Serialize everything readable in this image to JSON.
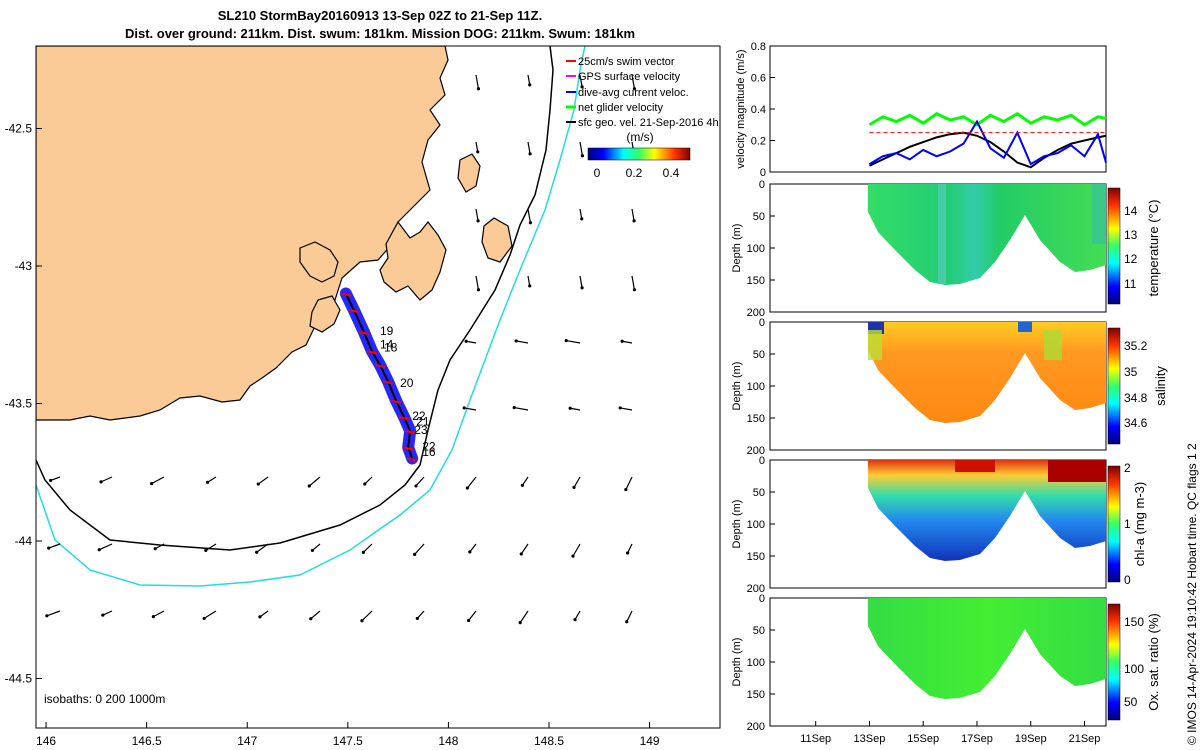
{
  "title": {
    "line1": "SL210 StormBay20160913 13-Sep 02Z to 21-Sep 11Z.",
    "line2": "Dist. over ground: 211km. Dist. swum: 181km. Mission DOG: 211km. Swum: 181km"
  },
  "colors": {
    "land": "#fbcb97",
    "isobath_200": "#000000",
    "isobath_1000": "#22dddd",
    "track": "#000000",
    "swim_vector": "#ff0000",
    "gps_velocity": "#ff00ff",
    "dive_avg_velocity": "#0000ff",
    "net_glider_velocity": "#00ff00",
    "sfc_geo_velocity": "#000000"
  },
  "credit": "© IMOS 14-Apr-2024 19:10:42 Hobart time. QC flags 1  2",
  "chart_data": [
    {
      "id": "map",
      "type": "scatter",
      "title": "",
      "xlabel": "",
      "ylabel": "",
      "xlim": [
        145.95,
        149.35
      ],
      "ylim": [
        -44.68,
        -42.2
      ],
      "xticks": [
        "146",
        "146.5",
        "147",
        "147.5",
        "148",
        "148.5",
        "149"
      ],
      "yticks": [
        "-42.5",
        "-43",
        "-43.5",
        "-44",
        "-44.5"
      ],
      "legend": [
        "25cm/s swim vector",
        "GPS surface velocity",
        "dive-avg current veloc.",
        "net glider velocity",
        "sfc geo. vel. 21-Sep-2016 4h"
      ],
      "colorbar_label": "(m/s)",
      "colorbar_ticks": [
        "0",
        "0.2",
        "0.4"
      ],
      "isobath_note": "isobaths: 0  200  1000m",
      "day_labels": [
        {
          "label": "19",
          "lon": 147.66,
          "lat": -43.25
        },
        {
          "label": "14",
          "lon": 147.66,
          "lat": -43.3
        },
        {
          "label": "18",
          "lon": 147.68,
          "lat": -43.31
        },
        {
          "label": "20",
          "lon": 147.76,
          "lat": -43.44
        },
        {
          "label": "22",
          "lon": 147.82,
          "lat": -43.56
        },
        {
          "label": "21",
          "lon": 147.84,
          "lat": -43.58
        },
        {
          "label": "23",
          "lon": 147.83,
          "lat": -43.61
        },
        {
          "label": "22",
          "lon": 147.87,
          "lat": -43.67
        },
        {
          "label": "16",
          "lon": 147.87,
          "lat": -43.69
        }
      ],
      "track": {
        "lon": [
          147.49,
          147.53,
          147.58,
          147.62,
          147.66,
          147.7,
          147.74,
          147.78,
          147.81,
          147.8,
          147.82
        ],
        "lat": [
          -43.1,
          -43.16,
          -43.24,
          -43.31,
          -43.36,
          -43.42,
          -43.49,
          -43.55,
          -43.6,
          -43.66,
          -43.7
        ]
      }
    },
    {
      "id": "velocity",
      "type": "line",
      "ylabel": "velocity magnitude (m/s)",
      "ylim": [
        0,
        0.8
      ],
      "yticks": [
        "0",
        "0.2",
        "0.4",
        "0.6",
        "0.8"
      ],
      "xlim": [
        9.3,
        21.8
      ],
      "series": [
        {
          "name": "net glider velocity",
          "x": [
            13.0,
            13.5,
            14.0,
            14.5,
            15.0,
            15.5,
            16.0,
            16.5,
            17.0,
            17.5,
            18.0,
            18.5,
            19.0,
            19.5,
            20.0,
            20.5,
            21.0,
            21.5,
            21.8
          ],
          "y": [
            0.3,
            0.35,
            0.32,
            0.36,
            0.31,
            0.37,
            0.33,
            0.35,
            0.3,
            0.36,
            0.32,
            0.37,
            0.31,
            0.35,
            0.33,
            0.36,
            0.3,
            0.35,
            0.34
          ]
        },
        {
          "name": "sfc geo. vel.",
          "x": [
            13.0,
            13.5,
            14.0,
            14.5,
            15.0,
            15.5,
            16.0,
            16.5,
            17.0,
            17.5,
            18.0,
            18.5,
            19.0,
            19.5,
            20.0,
            20.5,
            21.0,
            21.5,
            21.8
          ],
          "y": [
            0.04,
            0.08,
            0.12,
            0.16,
            0.19,
            0.22,
            0.24,
            0.25,
            0.23,
            0.19,
            0.13,
            0.06,
            0.03,
            0.09,
            0.14,
            0.18,
            0.2,
            0.22,
            0.23
          ]
        },
        {
          "name": "dive-avg current veloc.",
          "x": [
            13.0,
            13.5,
            14.0,
            14.5,
            15.0,
            15.5,
            16.0,
            16.5,
            17.0,
            17.5,
            18.0,
            18.5,
            19.0,
            19.5,
            20.0,
            20.5,
            21.0,
            21.5,
            21.8
          ],
          "y": [
            0.05,
            0.1,
            0.12,
            0.08,
            0.14,
            0.1,
            0.13,
            0.18,
            0.32,
            0.15,
            0.09,
            0.25,
            0.05,
            0.1,
            0.12,
            0.17,
            0.1,
            0.24,
            0.06
          ]
        },
        {
          "name": "25cm/s swim vector",
          "x": [
            13.0,
            21.8
          ],
          "y": [
            0.25,
            0.25
          ]
        }
      ]
    },
    {
      "id": "temperature",
      "type": "heatmap",
      "ylabel": "Depth (m)",
      "colorbar_label": "temperature (°C)",
      "colorbar_ticks": [
        "11",
        "12",
        "13",
        "14"
      ],
      "yticks": [
        "0",
        "50",
        "100",
        "150",
        "200"
      ],
      "ylim": [
        200,
        0
      ]
    },
    {
      "id": "salinity",
      "type": "heatmap",
      "ylabel": "Depth (m)",
      "colorbar_label": "salinity",
      "colorbar_ticks": [
        "34.6",
        "34.8",
        "35",
        "35.2"
      ],
      "yticks": [
        "0",
        "50",
        "100",
        "150",
        "200"
      ],
      "ylim": [
        200,
        0
      ]
    },
    {
      "id": "chla",
      "type": "heatmap",
      "ylabel": "Depth (m)",
      "colorbar_label": "chl-a (mg m-3)",
      "colorbar_ticks": [
        "0",
        "1",
        "2"
      ],
      "yticks": [
        "0",
        "50",
        "100",
        "150",
        "200"
      ],
      "ylim": [
        200,
        0
      ]
    },
    {
      "id": "oxygen",
      "type": "heatmap",
      "ylabel": "Depth (m)",
      "colorbar_label": "Ox. sat. ratio (%)",
      "colorbar_ticks": [
        "50",
        "100",
        "150"
      ],
      "yticks": [
        "0",
        "50",
        "100",
        "150",
        "200"
      ],
      "ylim": [
        200,
        0
      ],
      "xticks": [
        "11Sep",
        "13Sep",
        "15Sep",
        "17Sep",
        "19Sep",
        "21Sep"
      ]
    }
  ]
}
